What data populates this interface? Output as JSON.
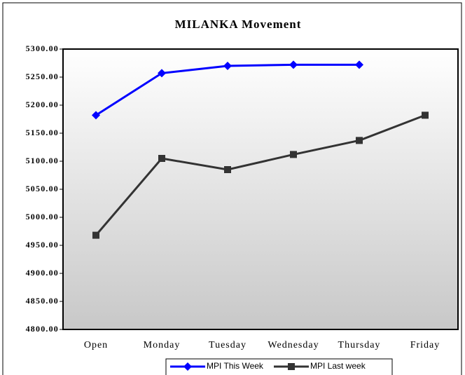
{
  "chart_data": {
    "type": "line",
    "title": "MILANKA Movement",
    "categories": [
      "Open",
      "Monday",
      "Tuesday",
      "Wednesday",
      "Thursday",
      "Friday"
    ],
    "series": [
      {
        "name": "MPI This Week",
        "color": "#0000ff",
        "marker": "diamond",
        "values": [
          5182,
          5257,
          5270,
          5272,
          5272,
          null
        ]
      },
      {
        "name": "MPI Last week",
        "color": "#333333",
        "marker": "square",
        "values": [
          4968,
          5105,
          5085,
          5112,
          5137,
          5182
        ]
      }
    ],
    "ylim": [
      4800,
      5300
    ],
    "yticks": [
      {
        "value": 4800,
        "label": "4800.00"
      },
      {
        "value": 4850,
        "label": "4850.00"
      },
      {
        "value": 4900,
        "label": "4900.00"
      },
      {
        "value": 4950,
        "label": "4950.00"
      },
      {
        "value": 5000,
        "label": "5000.00"
      },
      {
        "value": 5050,
        "label": "5050.00"
      },
      {
        "value": 5100,
        "label": "5100.00"
      },
      {
        "value": 5150,
        "label": "5150.00"
      },
      {
        "value": 5200,
        "label": "5200.00"
      },
      {
        "value": 5250,
        "label": "5250.00"
      },
      {
        "value": 5300,
        "label": "5300.00"
      }
    ],
    "grid": false,
    "legend": "bottom"
  }
}
